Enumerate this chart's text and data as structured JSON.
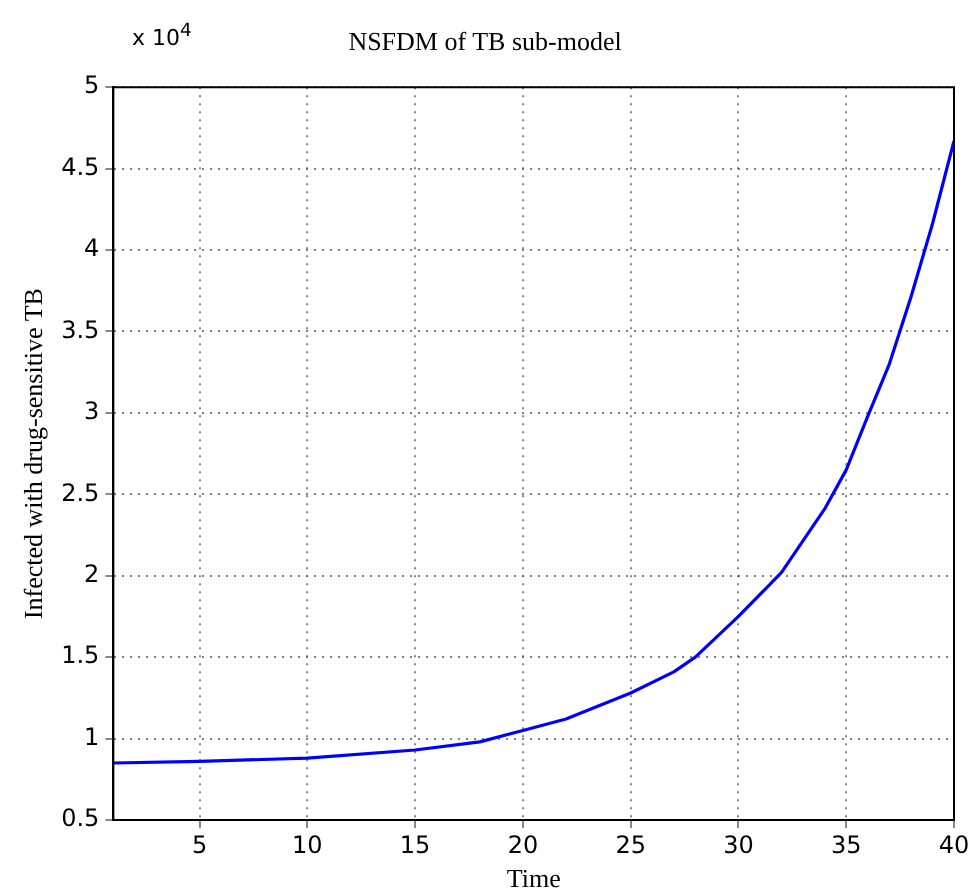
{
  "chart_data": {
    "type": "line",
    "title": "NSFDM of TB sub-model",
    "xlabel": "Time",
    "ylabel": "Infected with drug-sensitive TB",
    "annotations": [
      "x 10$^{4}$"
    ],
    "x": [
      1,
      5,
      10,
      15,
      18,
      20,
      22,
      25,
      27,
      28,
      30,
      32,
      34,
      35,
      36,
      37,
      38,
      39,
      40
    ],
    "series": [
      {
        "color": "#0000ff",
        "values": [
          0.85,
          0.86,
          0.88,
          0.93,
          0.98,
          1.05,
          1.12,
          1.28,
          1.41,
          1.5,
          1.75,
          2.02,
          2.41,
          2.65,
          2.98,
          3.3,
          3.71,
          4.16,
          4.67
        ]
      }
    ],
    "xlim": [
      1,
      40
    ],
    "xticks": [
      5,
      10,
      15,
      20,
      25,
      30,
      35,
      40
    ],
    "ylim": [
      0.5,
      5
    ],
    "yticks": [
      0.5,
      1,
      1.5,
      2,
      2.5,
      3,
      3.5,
      4,
      4.5,
      5
    ],
    "grid": true,
    "marker": "none",
    "line_style": "solid"
  }
}
